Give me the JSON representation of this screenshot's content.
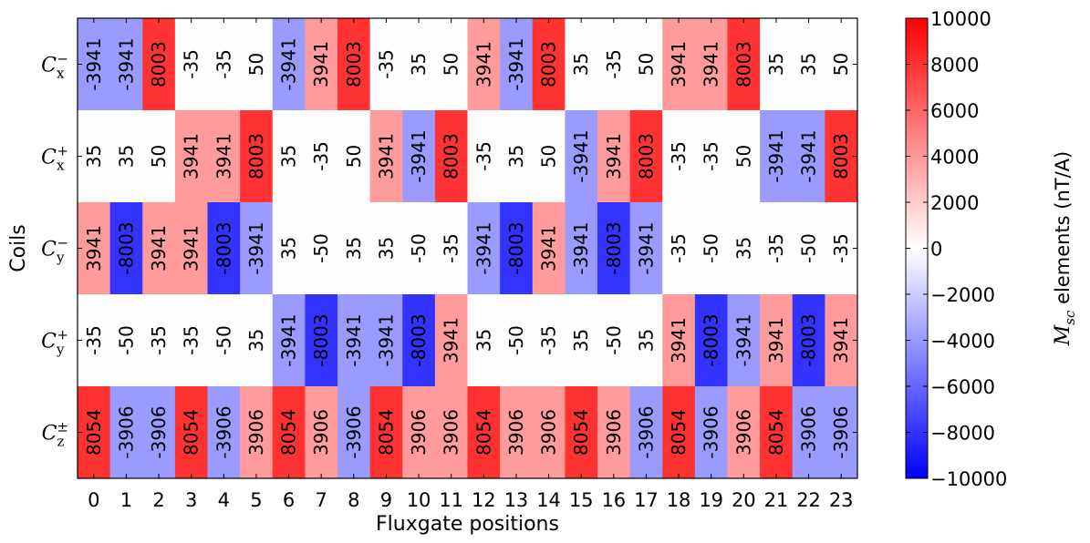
{
  "chart_data": {
    "type": "heatmap",
    "title": "",
    "xlabel": "Fluxgate positions",
    "ylabel": "Coils",
    "x": [
      "0",
      "1",
      "2",
      "3",
      "4",
      "5",
      "6",
      "7",
      "8",
      "9",
      "10",
      "11",
      "12",
      "13",
      "14",
      "15",
      "16",
      "17",
      "18",
      "19",
      "20",
      "21",
      "22",
      "23"
    ],
    "rows": [
      {
        "base": "C",
        "sub": "x",
        "sup": "−"
      },
      {
        "base": "C",
        "sub": "x",
        "sup": "+"
      },
      {
        "base": "C",
        "sub": "y",
        "sup": "−"
      },
      {
        "base": "C",
        "sub": "y",
        "sup": "+"
      },
      {
        "base": "C",
        "sub": "z",
        "sup": "±"
      }
    ],
    "values": [
      [
        -3941,
        -3941,
        8003,
        -35,
        -35,
        50,
        -3941,
        3941,
        8003,
        -35,
        35,
        50,
        3941,
        -3941,
        8003,
        35,
        -35,
        50,
        3941,
        3941,
        8003,
        35,
        35,
        50
      ],
      [
        35,
        35,
        50,
        3941,
        3941,
        8003,
        35,
        -35,
        50,
        3941,
        -3941,
        8003,
        -35,
        35,
        50,
        -3941,
        3941,
        8003,
        -35,
        -35,
        50,
        -3941,
        -3941,
        8003
      ],
      [
        3941,
        -8003,
        3941,
        3941,
        -8003,
        -3941,
        35,
        -50,
        35,
        35,
        -50,
        -35,
        -3941,
        -8003,
        3941,
        -3941,
        -8003,
        -3941,
        -35,
        -50,
        35,
        -35,
        -50,
        -35
      ],
      [
        -35,
        -50,
        -35,
        -35,
        -50,
        35,
        -3941,
        -8003,
        -3941,
        -3941,
        -8003,
        3941,
        35,
        -50,
        -35,
        35,
        -50,
        35,
        3941,
        -8003,
        -3941,
        3941,
        -8003,
        3941
      ],
      [
        8054,
        -3906,
        -3906,
        8054,
        -3906,
        3906,
        8054,
        3906,
        -3906,
        8054,
        3906,
        3906,
        8054,
        3906,
        3906,
        8054,
        3906,
        -3906,
        8054,
        -3906,
        3906,
        8054,
        -3906,
        -3906
      ]
    ],
    "colorbar": {
      "colormap": "bwr",
      "vmin": -10000,
      "vmax": 10000,
      "ticks": [
        "10000",
        "8000",
        "6000",
        "4000",
        "2000",
        "0",
        "−2000",
        "−4000",
        "−6000",
        "−8000",
        "−10000"
      ],
      "label_math": "M",
      "label_math_sub": "sc",
      "label_text": " elements  (nT/A)"
    },
    "grid": false,
    "legend": "none"
  }
}
